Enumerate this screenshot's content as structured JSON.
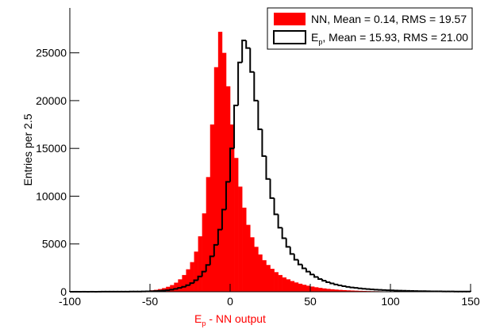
{
  "chart_data": {
    "type": "histogram",
    "x_label": [
      "E",
      "p",
      " - NN output"
    ],
    "y_label": "Entries per 2.5",
    "bins": [
      -100,
      -97.5,
      -95,
      -92.5,
      -90,
      -87.5,
      -85,
      -82.5,
      -80,
      -77.5,
      -75,
      -72.5,
      -70,
      -67.5,
      -65,
      -62.5,
      -60,
      -57.5,
      -55,
      -52.5,
      -50,
      -47.5,
      -45,
      -42.5,
      -40,
      -37.5,
      -35,
      -32.5,
      -30,
      -27.5,
      -25,
      -22.5,
      -20,
      -17.5,
      -15,
      -12.5,
      -10,
      -7.5,
      -5,
      -2.5,
      0,
      2.5,
      5,
      7.5,
      10,
      12.5,
      15,
      17.5,
      20,
      22.5,
      25,
      27.5,
      30,
      32.5,
      35,
      37.5,
      40,
      42.5,
      45,
      47.5,
      50,
      52.5,
      55,
      57.5,
      60,
      62.5,
      65,
      67.5,
      70,
      72.5,
      75,
      77.5,
      80,
      82.5,
      85,
      87.5,
      90,
      92.5,
      95,
      97.5,
      100,
      102.5,
      105,
      107.5,
      110,
      112.5,
      115,
      117.5,
      120,
      122.5,
      125,
      127.5,
      130,
      132.5,
      135,
      137.5,
      140,
      142.5,
      145,
      147.5,
      150
    ],
    "series": [
      {
        "name": [
          "NN, Mean = 0.14, RMS = 19.57"
        ],
        "color": "#ff0000",
        "filled": true,
        "values": [
          1,
          1,
          1,
          2,
          2,
          2,
          3,
          3,
          4,
          5,
          6,
          7,
          8,
          10,
          12,
          15,
          19,
          25,
          35,
          50,
          150,
          200,
          280,
          380,
          520,
          700,
          950,
          1300,
          1750,
          2350,
          3100,
          4200,
          5800,
          8200,
          12000,
          17500,
          23500,
          27200,
          25000,
          21500,
          17500,
          14000,
          11000,
          8800,
          7000,
          5700,
          4700,
          3900,
          3300,
          2800,
          2400,
          2050,
          1750,
          1500,
          1300,
          1120,
          970,
          840,
          730,
          630,
          545,
          470,
          405,
          350,
          300,
          260,
          225,
          195,
          170,
          148,
          128,
          111,
          96,
          83,
          72,
          62,
          54,
          47,
          41,
          36,
          31,
          27,
          24,
          21,
          18,
          16,
          14,
          12,
          11,
          10,
          9,
          8,
          7,
          6,
          6,
          5,
          5,
          4,
          4,
          3
        ]
      },
      {
        "name": [
          "E",
          "p",
          ", Mean = 15.93, RMS = 21.00"
        ],
        "color": "#000000",
        "filled": false,
        "values": [
          2,
          2,
          3,
          3,
          4,
          4,
          5,
          5,
          6,
          7,
          8,
          9,
          10,
          12,
          14,
          17,
          20,
          25,
          32,
          40,
          50,
          70,
          90,
          120,
          160,
          220,
          300,
          400,
          520,
          680,
          900,
          1200,
          1600,
          2100,
          2800,
          3700,
          4900,
          6500,
          8600,
          11500,
          15000,
          19500,
          24000,
          26300,
          25500,
          23000,
          20000,
          17000,
          14200,
          11800,
          9800,
          8100,
          6700,
          5600,
          4700,
          3950,
          3350,
          2850,
          2450,
          2100,
          1800,
          1550,
          1330,
          1150,
          1000,
          870,
          760,
          660,
          580,
          510,
          450,
          400,
          350,
          310,
          275,
          245,
          220,
          195,
          175,
          155,
          140,
          125,
          110,
          100,
          90,
          80,
          72,
          65,
          58,
          52,
          46,
          41,
          37,
          33,
          30,
          27,
          24,
          21,
          19,
          17
        ]
      }
    ],
    "xlim": [
      -100,
      150
    ],
    "xticks": [
      -100,
      -50,
      0,
      50,
      100,
      150
    ],
    "ylim": [
      0,
      29700
    ],
    "yticks": [
      0,
      5000,
      10000,
      15000,
      20000,
      25000
    ],
    "legend": "top-right"
  }
}
